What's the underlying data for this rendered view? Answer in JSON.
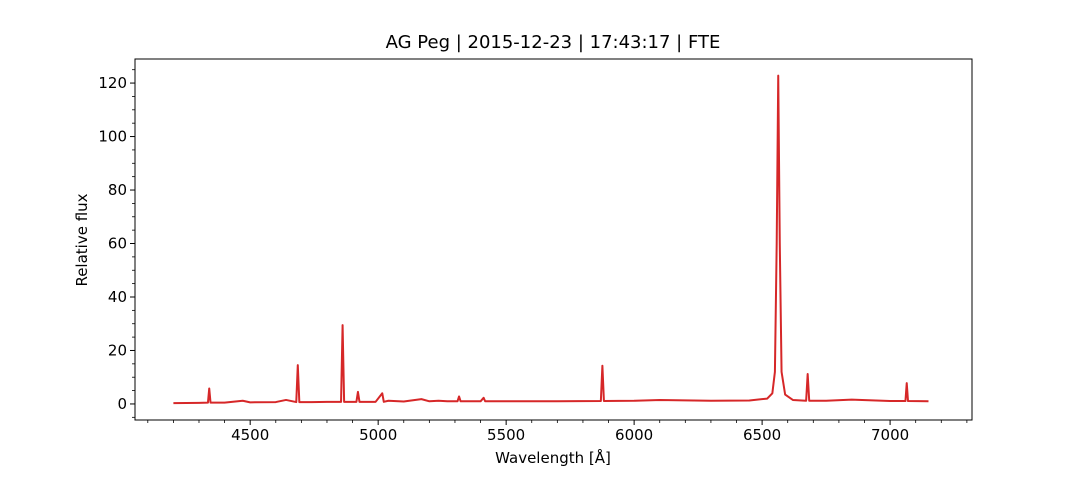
{
  "chart_data": {
    "type": "line",
    "title": "AG Peg | 2015-12-23 | 17:43:17 | FTE",
    "xlabel": "Wavelength [Å]",
    "ylabel": "Relative flux",
    "xlim": [
      4050,
      7320
    ],
    "ylim": [
      -6,
      129
    ],
    "xticks": [
      4500,
      5000,
      5500,
      6000,
      6500,
      7000
    ],
    "yticks": [
      0,
      20,
      40,
      60,
      80,
      100,
      120
    ],
    "grid": false,
    "legend": "none",
    "series": [
      {
        "color": "#d62728",
        "x": [
          4200,
          4300,
          4335,
          4340,
          4345,
          4400,
          4471,
          4500,
          4600,
          4640,
          4680,
          4686,
          4692,
          4740,
          4800,
          4855,
          4861,
          4867,
          4915,
          4921,
          4927,
          4990,
          5016,
          5022,
          5040,
          5100,
          5169,
          5200,
          5236,
          5270,
          5310,
          5316,
          5322,
          5400,
          5412,
          5418,
          5500,
          5700,
          5870,
          5876,
          5882,
          6000,
          6100,
          6300,
          6450,
          6520,
          6540,
          6550,
          6557,
          6563,
          6569,
          6576,
          6590,
          6620,
          6672,
          6678,
          6684,
          6750,
          6850,
          7000,
          7060,
          7065,
          7070,
          7150
        ],
        "y": [
          0.3,
          0.4,
          0.5,
          5.8,
          0.5,
          0.5,
          1.2,
          0.6,
          0.7,
          1.5,
          0.7,
          14.5,
          0.7,
          0.7,
          0.8,
          0.8,
          29.5,
          0.8,
          0.8,
          4.5,
          0.8,
          0.8,
          4.0,
          0.8,
          1.2,
          0.9,
          1.8,
          1.0,
          1.2,
          1.0,
          1.0,
          2.8,
          1.0,
          1.0,
          2.3,
          1.0,
          1.0,
          1.0,
          1.1,
          14.3,
          1.1,
          1.2,
          1.5,
          1.2,
          1.3,
          2.0,
          4.0,
          12.0,
          60.0,
          122.8,
          60.0,
          12.0,
          3.5,
          1.5,
          1.2,
          11.2,
          1.2,
          1.2,
          1.6,
          1.1,
          1.1,
          7.8,
          1.1,
          1.0
        ]
      }
    ]
  }
}
